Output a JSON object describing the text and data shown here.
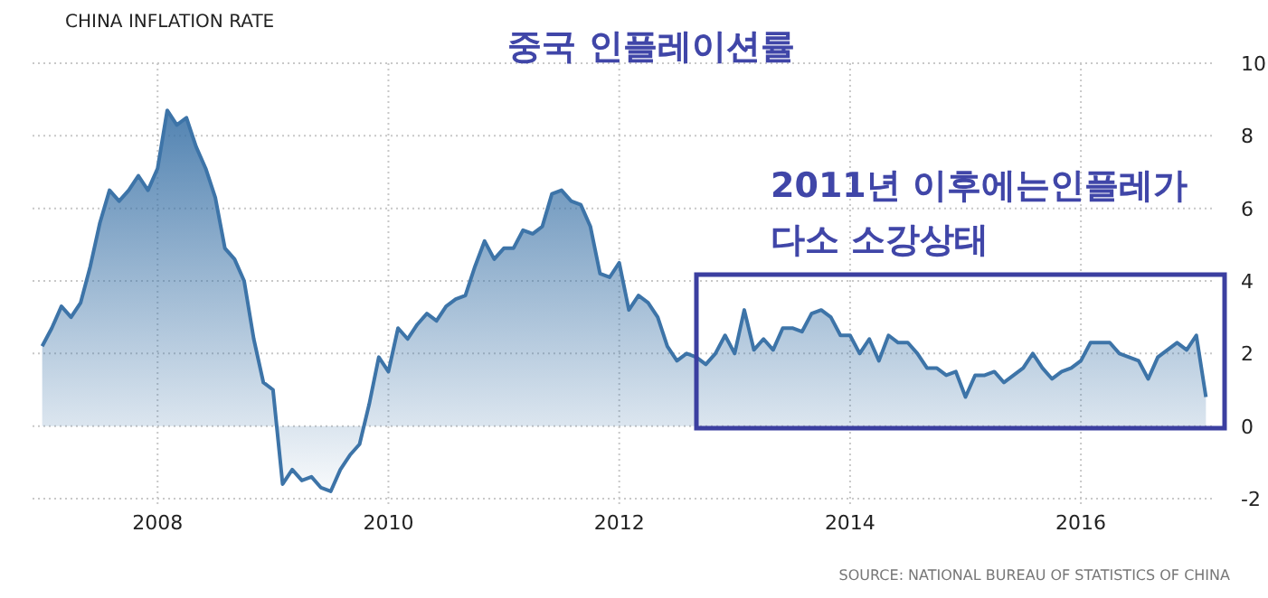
{
  "chart_data": {
    "type": "area",
    "title": "CHINA INFLATION RATE",
    "subtitle": "중국 인플레이션률",
    "annotations": [
      "2011년 이후에는인플레가",
      "다소 소강상태",
      "SOURCE: NATIONAL BUREAU OF STATISTICS OF CHINA"
    ],
    "x": [
      "2007-01",
      "2007-02",
      "2007-03",
      "2007-04",
      "2007-05",
      "2007-06",
      "2007-07",
      "2007-08",
      "2007-09",
      "2007-10",
      "2007-11",
      "2007-12",
      "2008-01",
      "2008-02",
      "2008-03",
      "2008-04",
      "2008-05",
      "2008-06",
      "2008-07",
      "2008-08",
      "2008-09",
      "2008-10",
      "2008-11",
      "2008-12",
      "2009-01",
      "2009-02",
      "2009-03",
      "2009-04",
      "2009-05",
      "2009-06",
      "2009-07",
      "2009-08",
      "2009-09",
      "2009-10",
      "2009-11",
      "2009-12",
      "2010-01",
      "2010-02",
      "2010-03",
      "2010-04",
      "2010-05",
      "2010-06",
      "2010-07",
      "2010-08",
      "2010-09",
      "2010-10",
      "2010-11",
      "2010-12",
      "2011-01",
      "2011-02",
      "2011-03",
      "2011-04",
      "2011-05",
      "2011-06",
      "2011-07",
      "2011-08",
      "2011-09",
      "2011-10",
      "2011-11",
      "2011-12",
      "2012-01",
      "2012-02",
      "2012-03",
      "2012-04",
      "2012-05",
      "2012-06",
      "2012-07",
      "2012-08",
      "2012-09",
      "2012-10",
      "2012-11",
      "2012-12",
      "2013-01",
      "2013-02",
      "2013-03",
      "2013-04",
      "2013-05",
      "2013-06",
      "2013-07",
      "2013-08",
      "2013-09",
      "2013-10",
      "2013-11",
      "2013-12",
      "2014-01",
      "2014-02",
      "2014-03",
      "2014-04",
      "2014-05",
      "2014-06",
      "2014-07",
      "2014-08",
      "2014-09",
      "2014-10",
      "2014-11",
      "2014-12",
      "2015-01",
      "2015-02",
      "2015-03",
      "2015-04",
      "2015-05",
      "2015-06",
      "2015-07",
      "2015-08",
      "2015-09",
      "2015-10",
      "2015-11",
      "2015-12",
      "2016-01",
      "2016-02",
      "2016-03",
      "2016-04",
      "2016-05",
      "2016-06",
      "2016-07",
      "2016-08",
      "2016-09",
      "2016-10",
      "2016-11",
      "2016-12",
      "2017-01",
      "2017-02"
    ],
    "series": [
      {
        "color": "#3d74a8",
        "values": [
          2.2,
          2.7,
          3.3,
          3.0,
          3.4,
          4.4,
          5.6,
          6.5,
          6.2,
          6.5,
          6.9,
          6.5,
          7.1,
          8.7,
          8.3,
          8.5,
          7.7,
          7.1,
          6.3,
          4.9,
          4.6,
          4.0,
          2.4,
          1.2,
          1.0,
          -1.6,
          -1.2,
          -1.5,
          -1.4,
          -1.7,
          -1.8,
          -1.2,
          -0.8,
          -0.5,
          0.6,
          1.9,
          1.5,
          2.7,
          2.4,
          2.8,
          3.1,
          2.9,
          3.3,
          3.5,
          3.6,
          4.4,
          5.1,
          4.6,
          4.9,
          4.9,
          5.4,
          5.3,
          5.5,
          6.4,
          6.5,
          6.2,
          6.1,
          5.5,
          4.2,
          4.1,
          4.5,
          3.2,
          3.6,
          3.4,
          3.0,
          2.2,
          1.8,
          2.0,
          1.9,
          1.7,
          2.0,
          2.5,
          2.0,
          3.2,
          2.1,
          2.4,
          2.1,
          2.7,
          2.7,
          2.6,
          3.1,
          3.2,
          3.0,
          2.5,
          2.5,
          2.0,
          2.4,
          1.8,
          2.5,
          2.3,
          2.3,
          2.0,
          1.6,
          1.6,
          1.4,
          1.5,
          0.8,
          1.4,
          1.4,
          1.5,
          1.2,
          1.4,
          1.6,
          2.0,
          1.6,
          1.3,
          1.5,
          1.6,
          1.8,
          2.3,
          2.3,
          2.3,
          2.0,
          1.9,
          1.8,
          1.3,
          1.9,
          2.1,
          2.3,
          2.1,
          2.5,
          0.8
        ]
      }
    ],
    "xlim": [
      "2006-12",
      "2017-03"
    ],
    "xticks": [
      {
        "value": "2008",
        "label": "2008"
      },
      {
        "value": "2010",
        "label": "2010"
      },
      {
        "value": "2012",
        "label": "2012"
      },
      {
        "value": "2014",
        "label": "2014"
      },
      {
        "value": "2016",
        "label": "2016"
      }
    ],
    "ylim": [
      -2,
      10
    ],
    "yticks": [
      -2,
      0,
      2,
      4,
      6,
      8,
      10
    ],
    "grid": true
  }
}
